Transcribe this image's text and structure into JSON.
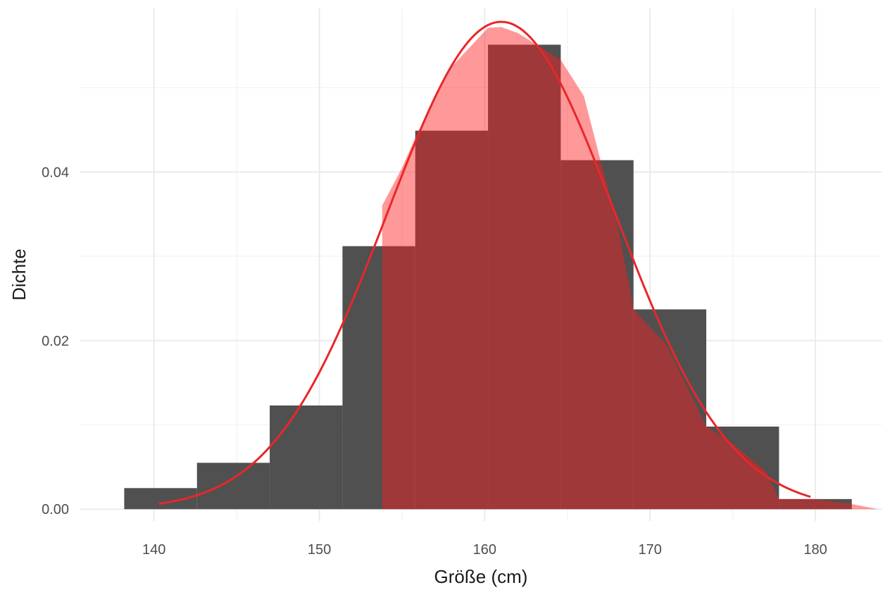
{
  "chart_data": {
    "type": "histogram",
    "title": "",
    "xlabel": "Größe (cm)",
    "ylabel": "Dichte",
    "xlim": [
      135.5,
      184
    ],
    "ylim": [
      -0.0014,
      0.0594
    ],
    "x_ticks": [
      {
        "value": 140,
        "label": "140"
      },
      {
        "value": 150,
        "label": "150"
      },
      {
        "value": 160,
        "label": "160"
      },
      {
        "value": 170,
        "label": "170"
      },
      {
        "value": 180,
        "label": "180"
      }
    ],
    "y_ticks": [
      {
        "value": 0.0,
        "label": "0.00"
      },
      {
        "value": 0.02,
        "label": "0.02"
      },
      {
        "value": 0.04,
        "label": "0.04"
      }
    ],
    "x_minor_gridlines": [
      145,
      155,
      165,
      175
    ],
    "y_minor_gridlines": [
      0.01,
      0.03,
      0.05
    ],
    "grid": true,
    "histogram": {
      "color": "#505050",
      "bins": [
        {
          "x0": 138.2,
          "x1": 142.6,
          "density": 0.0025
        },
        {
          "x0": 142.6,
          "x1": 147.0,
          "density": 0.0055
        },
        {
          "x0": 147.0,
          "x1": 151.4,
          "density": 0.0123
        },
        {
          "x0": 151.4,
          "x1": 155.8,
          "density": 0.0312
        },
        {
          "x0": 155.8,
          "x1": 160.2,
          "density": 0.0449
        },
        {
          "x0": 160.2,
          "x1": 164.6,
          "density": 0.0551
        },
        {
          "x0": 164.6,
          "x1": 169.0,
          "density": 0.0414
        },
        {
          "x0": 169.0,
          "x1": 173.4,
          "density": 0.0237
        },
        {
          "x0": 173.4,
          "x1": 177.8,
          "density": 0.0098
        },
        {
          "x0": 177.8,
          "x1": 182.2,
          "density": 0.0012
        }
      ]
    },
    "density_curve": {
      "type": "normal",
      "mean": 161.0,
      "sd": 6.9,
      "x_range": [
        140.3,
        179.7
      ],
      "line_color": "#e8272a"
    },
    "density_area": {
      "fill_color": "#ff1a1a",
      "fill_opacity": 0.45,
      "points": [
        {
          "x": 153.8,
          "y": 0.036
        },
        {
          "x": 155.0,
          "y": 0.0405
        },
        {
          "x": 156.0,
          "y": 0.0449
        },
        {
          "x": 158.0,
          "y": 0.0525
        },
        {
          "x": 160.2,
          "y": 0.0571
        },
        {
          "x": 161.0,
          "y": 0.0572
        },
        {
          "x": 162.0,
          "y": 0.0565
        },
        {
          "x": 164.6,
          "y": 0.0533
        },
        {
          "x": 166.0,
          "y": 0.049
        },
        {
          "x": 167.0,
          "y": 0.0414
        },
        {
          "x": 168.0,
          "y": 0.0341
        },
        {
          "x": 169.0,
          "y": 0.0237
        },
        {
          "x": 171.0,
          "y": 0.0195
        },
        {
          "x": 173.4,
          "y": 0.0098
        },
        {
          "x": 175.0,
          "y": 0.0078
        },
        {
          "x": 177.0,
          "y": 0.0045
        },
        {
          "x": 177.8,
          "y": 0.0012
        },
        {
          "x": 180.0,
          "y": 0.0012
        },
        {
          "x": 182.2,
          "y": 0.0006
        },
        {
          "x": 183.8,
          "y": 0.0
        }
      ]
    }
  }
}
